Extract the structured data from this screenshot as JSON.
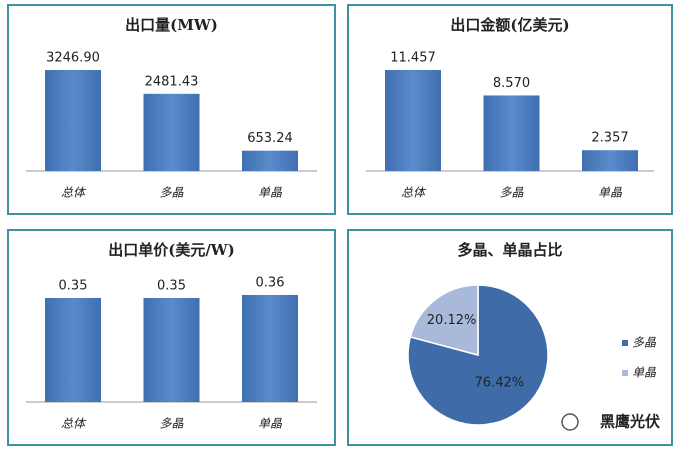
{
  "chart_data": [
    {
      "type": "bar",
      "title": "出口量(MW)",
      "categories": [
        "总体",
        "多晶",
        "单晶"
      ],
      "values": [
        3246.9,
        2481.43,
        653.24
      ],
      "value_labels": [
        "3246.90",
        "2481.43",
        "653.24"
      ],
      "color": "#4f81bd"
    },
    {
      "type": "bar",
      "title": "出口金额(亿美元)",
      "categories": [
        "总体",
        "多晶",
        "单晶"
      ],
      "values": [
        11.457,
        8.57,
        2.357
      ],
      "value_labels": [
        "11.457",
        "8.570",
        "2.357"
      ],
      "color": "#4f81bd"
    },
    {
      "type": "bar",
      "title": "出口单价(美元/W)",
      "categories": [
        "总体",
        "多晶",
        "单晶"
      ],
      "values": [
        0.35,
        0.35,
        0.36
      ],
      "color": "#4f81bd"
    },
    {
      "type": "pie",
      "title": "多晶、单晶占比",
      "categories": [
        "多晶",
        "单晶"
      ],
      "values": [
        76.42,
        20.12
      ],
      "value_labels": [
        "76.42%",
        "20.12%"
      ],
      "colors": [
        "#3f6ca8",
        "#a9b9d9"
      ],
      "legend": "right"
    }
  ],
  "watermark": "黑鹰光伏"
}
